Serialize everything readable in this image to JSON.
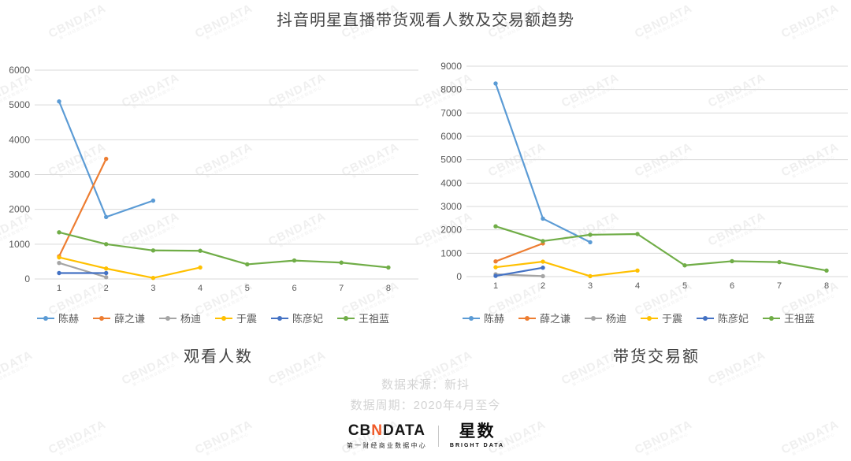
{
  "header": {
    "title": "抖音明星直播带货观看人数及交易额趋势"
  },
  "watermark": {
    "text": "CBNDATA",
    "subtext": "第一财经商业数据中心"
  },
  "source": {
    "line1": "数据来源：新抖",
    "line2": "数据周期：2020年4月至今"
  },
  "footer": {
    "cbndata": {
      "part1": "CB",
      "part2": "N",
      "part3": "DATA",
      "subtitle": "第一财经商业数据中心"
    },
    "xingshu": {
      "name": "星数",
      "subtitle": "BRIGHT DATA"
    }
  },
  "chart_data": [
    {
      "type": "line",
      "title": "观看人数",
      "x": [
        1,
        2,
        3,
        4,
        5,
        6,
        7,
        8
      ],
      "xlabel": "",
      "ylabel": "",
      "ylim": [
        0,
        6000
      ],
      "ytick_step": 1000,
      "grid": true,
      "legend_position": "bottom",
      "series": [
        {
          "name": "陈赫",
          "color": "#5B9BD5",
          "values": [
            5100,
            1780,
            2250,
            null,
            null,
            null,
            null,
            null
          ]
        },
        {
          "name": "薛之谦",
          "color": "#ED7D31",
          "values": [
            650,
            3450,
            null,
            null,
            null,
            null,
            null,
            null
          ]
        },
        {
          "name": "杨迪",
          "color": "#A5A5A5",
          "values": [
            460,
            50,
            null,
            null,
            null,
            null,
            null,
            null
          ]
        },
        {
          "name": "于震",
          "color": "#FFC000",
          "values": [
            620,
            300,
            30,
            330,
            null,
            null,
            null,
            null
          ]
        },
        {
          "name": "陈彦妃",
          "color": "#4472C4",
          "values": [
            170,
            170,
            null,
            null,
            null,
            null,
            null,
            null
          ]
        },
        {
          "name": "王祖蓝",
          "color": "#70AD47",
          "values": [
            1340,
            1000,
            820,
            810,
            420,
            530,
            470,
            330
          ]
        }
      ]
    },
    {
      "type": "line",
      "title": "带货交易额",
      "x": [
        1,
        2,
        3,
        4,
        5,
        6,
        7,
        8
      ],
      "xlabel": "",
      "ylabel": "",
      "ylim": [
        0,
        9000
      ],
      "ytick_step": 1000,
      "grid": true,
      "legend_position": "bottom",
      "series": [
        {
          "name": "陈赫",
          "color": "#5B9BD5",
          "values": [
            8260,
            2480,
            1470,
            null,
            null,
            null,
            null,
            null
          ]
        },
        {
          "name": "薛之谦",
          "color": "#ED7D31",
          "values": [
            650,
            1420,
            null,
            null,
            null,
            null,
            null,
            null
          ]
        },
        {
          "name": "杨迪",
          "color": "#A5A5A5",
          "values": [
            100,
            20,
            null,
            null,
            null,
            null,
            null,
            null
          ]
        },
        {
          "name": "于震",
          "color": "#FFC000",
          "values": [
            400,
            640,
            20,
            260,
            null,
            null,
            null,
            null
          ]
        },
        {
          "name": "陈彦妃",
          "color": "#4472C4",
          "values": [
            30,
            380,
            null,
            null,
            null,
            null,
            null,
            null
          ]
        },
        {
          "name": "王祖蓝",
          "color": "#70AD47",
          "values": [
            2150,
            1520,
            1790,
            1820,
            480,
            660,
            620,
            260
          ]
        }
      ]
    }
  ]
}
